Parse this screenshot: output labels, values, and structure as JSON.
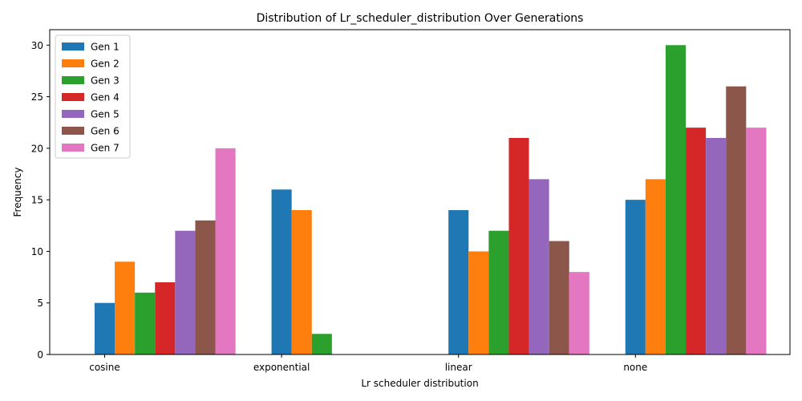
{
  "chart_data": {
    "type": "bar",
    "title": "Distribution of Lr_scheduler_distribution Over Generations",
    "xlabel": "Lr scheduler distribution",
    "ylabel": "Frequency",
    "categories": [
      "cosine",
      "exponential",
      "linear",
      "none"
    ],
    "ylim": [
      0,
      31.5
    ],
    "yticks": [
      0,
      5,
      10,
      15,
      20,
      25,
      30
    ],
    "grid": false,
    "legend_position": "upper-left",
    "series": [
      {
        "name": "Gen 1",
        "color": "#1f77b4",
        "values": [
          5,
          16,
          14,
          15
        ]
      },
      {
        "name": "Gen 2",
        "color": "#ff7f0e",
        "values": [
          9,
          14,
          10,
          17
        ]
      },
      {
        "name": "Gen 3",
        "color": "#2ca02c",
        "values": [
          6,
          2,
          12,
          30
        ]
      },
      {
        "name": "Gen 4",
        "color": "#d62728",
        "values": [
          7,
          0,
          21,
          22
        ]
      },
      {
        "name": "Gen 5",
        "color": "#9467bd",
        "values": [
          12,
          0,
          17,
          21
        ]
      },
      {
        "name": "Gen 6",
        "color": "#8c564b",
        "values": [
          13,
          0,
          11,
          26
        ]
      },
      {
        "name": "Gen 7",
        "color": "#e377c2",
        "values": [
          20,
          0,
          8,
          22
        ]
      }
    ]
  }
}
